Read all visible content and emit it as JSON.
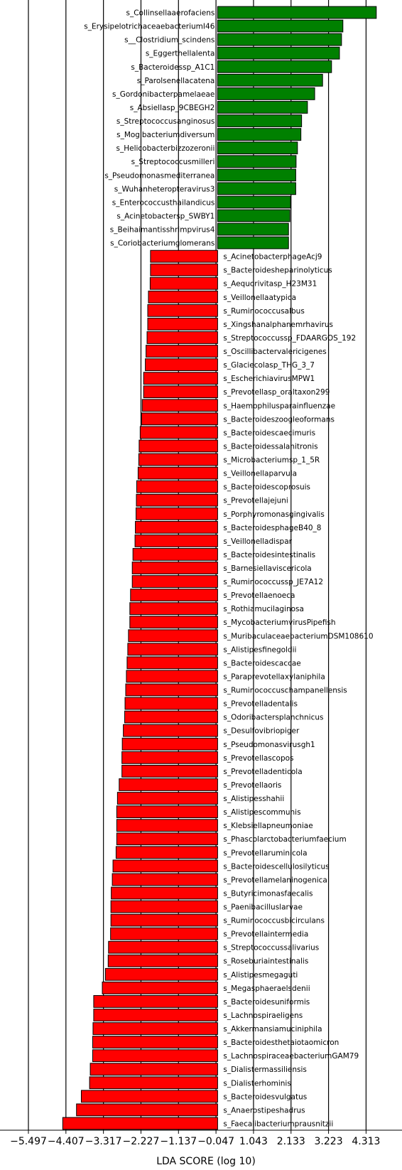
{
  "chart_data": {
    "type": "bar",
    "orientation": "horizontal",
    "xlabel": "LDA SCORE (log 10)",
    "ylabel": "",
    "title": "",
    "xlim": [
      -5.9,
      4.6
    ],
    "xticks": [
      -5.497,
      -4.407,
      -3.317,
      -2.227,
      -1.137,
      -0.047,
      1.043,
      2.133,
      3.223,
      4.313
    ],
    "xtick_labels": [
      "−5.497",
      "−4.407",
      "−3.317",
      "−2.227",
      "−1.137",
      "−0.047",
      "1.043",
      "2.133",
      "3.223",
      "4.313"
    ],
    "grid": "vertical",
    "colors": {
      "positive": "#008000",
      "negative": "#ff0000"
    },
    "categories": [
      "s_Collinsellaaerofaciens",
      "s_ErysipelotrichaceaebacteriumI46",
      "s__Clostridium_scindens",
      "s_Eggerthellalenta",
      "s_Bacteroidessp_A1C1",
      "s_Parolsenellacatena",
      "s_Gordonibacterpamelaeae",
      "s_Absiellasp_9CBEGH2",
      "s_Streptococcusanginosus",
      "s_Mogibacteriumdiversum",
      "s_Helicobacterbizzozeronii",
      "s_Streptococcusmilleri",
      "s_Pseudomonasmediterranea",
      "s_Wuhanheteropteravirus3",
      "s_Enterococcusthailandicus",
      "s_Acinetobactersp_SWBY1",
      "s_Beihaimantisshrimpvirus4",
      "s_Coriobacteriumglomerans",
      "s_AcinetobacterphageAcj9",
      "s_Bacteroidesheparinolyticus",
      "s_Aequorivitasp_H23M31",
      "s_Veillonellaatypica",
      "s_Ruminococcusalbus",
      "s_Xingshanalphanemrhavirus",
      "s_Streptococcussp_FDAARGOS_192",
      "s_Oscillibactervalericigenes",
      "s_Glaciecolasp_THG_3_7",
      "s_EscherichiavirusMPW1",
      "s_Prevotellasp_oraltaxon299",
      "s_Haemophilusparainfluenzae",
      "s_Bacteroideszoogleoformans",
      "s_Bacteroidescaecimuris",
      "s_Bacteroidessalanitronis",
      "s_Microbacteriumsp_1_5R",
      "s_Veillonellaparvula",
      "s_Bacteroidescoprosuis",
      "s_Prevotellajejuni",
      "s_Porphyromonasgingivalis",
      "s_BacteroidesphageB40_8",
      "s_Veillonelladispar",
      "s_Bacteroidesintestinalis",
      "s_Barnesiellaviscericola",
      "s_Ruminococcussp_JE7A12",
      "s_Prevotellaenoeca",
      "s_Rothiamucilaginosa",
      "s_MycobacteriumvirusPipefish",
      "s_MuribaculaceaebacteriumDSM108610",
      "s_Alistipesfinegoldii",
      "s_Bacteroidescaccae",
      "s_Paraprevotellaxylaniphila",
      "s_Ruminococcuschampanellensis",
      "s_Prevotelladentalis",
      "s_Odoribactersplanchnicus",
      "s_Desulfovibriopiger",
      "s_Pseudomonasvirusgh1",
      "s_Prevotellascopos",
      "s_Prevotelladenticola",
      "s_Prevotellaoris",
      "s_Alistipesshahii",
      "s_Alistipescommunis",
      "s_Klebsiellapneumoniae",
      "s_Phascolarctobacteriumfaecium",
      "s_Prevotellaruminicola",
      "s_Bacteroidescellulosilyticus",
      "s_Prevotellamelaninogenica",
      "s_Butyricimonasfaecalis",
      "s_Paenibacilluslarvae",
      "s_Ruminococcusbicirculans",
      "s_Prevotellaintermedia",
      "s_Streptococcussalivarius",
      "s_Roseburiaintestinalis",
      "s_Alistipesmegaguti",
      "s_Megasphaeraelsdenii",
      "s_Bacteroidesuniformis",
      "s_Lachnospiraeligens",
      "s_Akkermansiamuciniphila",
      "s_Bacteroidesthetaiotaomicron",
      "s_LachnospiraceaebacteriumGAM79",
      "s_Dialistermassiliensis",
      "s_Dialisterhominis",
      "s_Bacteroidesvulgatus",
      "s_Anaerostipeshadrus",
      "s_Faecalibacteriumprausnitzii"
    ],
    "values": [
      4.61,
      3.64,
      3.6,
      3.54,
      3.31,
      3.05,
      2.82,
      2.61,
      2.44,
      2.42,
      2.32,
      2.28,
      2.27,
      2.27,
      2.12,
      2.1,
      2.06,
      2.06,
      -1.95,
      -1.95,
      -1.96,
      -2.01,
      -2.03,
      -2.03,
      -2.05,
      -2.08,
      -2.1,
      -2.15,
      -2.15,
      -2.19,
      -2.21,
      -2.25,
      -2.28,
      -2.29,
      -2.31,
      -2.35,
      -2.36,
      -2.37,
      -2.39,
      -2.4,
      -2.46,
      -2.48,
      -2.48,
      -2.53,
      -2.55,
      -2.55,
      -2.59,
      -2.61,
      -2.63,
      -2.65,
      -2.67,
      -2.69,
      -2.7,
      -2.74,
      -2.77,
      -2.78,
      -2.78,
      -2.86,
      -2.91,
      -2.93,
      -2.93,
      -2.93,
      -2.95,
      -3.04,
      -3.06,
      -3.09,
      -3.1,
      -3.1,
      -3.11,
      -3.17,
      -3.18,
      -3.26,
      -3.35,
      -3.6,
      -3.6,
      -3.62,
      -3.63,
      -3.63,
      -3.7,
      -3.72,
      -3.96,
      -4.1,
      -4.5
    ]
  }
}
